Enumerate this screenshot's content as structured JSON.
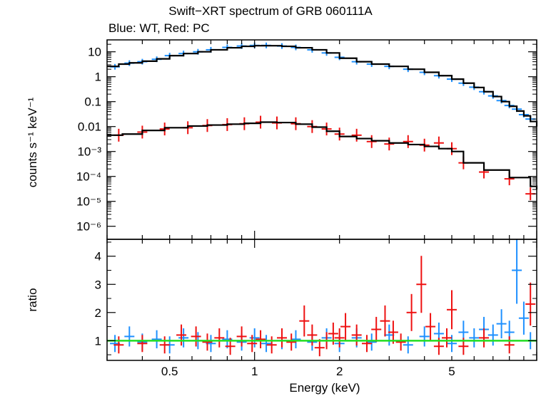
{
  "title": "Swift−XRT spectrum of GRB 060111A",
  "subtitle": "Blue: WT, Red: PC",
  "chart_data": [
    {
      "type": "scatter",
      "panel": "spectrum",
      "xlabel": "Energy (keV)",
      "ylabel": "counts s⁻¹ keV⁻¹",
      "xscale": "log",
      "yscale": "log",
      "xlim": [
        0.3,
        10
      ],
      "ylim": [
        3e-07,
        30
      ],
      "x_ticks": [],
      "y_ticks": [
        "10",
        "1",
        "0.1",
        "0.01",
        "10⁻³",
        "10⁻⁴",
        "10⁻⁵",
        "10⁻⁶"
      ],
      "series": [
        {
          "color": "#1e90ff",
          "x": [
            0.32,
            0.36,
            0.4,
            0.45,
            0.5,
            0.56,
            0.63,
            0.7,
            0.8,
            0.9,
            1.0,
            1.1,
            1.25,
            1.4,
            1.6,
            1.8,
            2.0,
            2.3,
            2.6,
            3.0,
            3.5,
            4.0,
            4.5,
            5.0,
            5.5,
            6.0,
            6.5,
            7.0,
            7.5,
            8.0,
            8.5,
            9.0,
            9.5
          ],
          "y": [
            2.5,
            3.5,
            4.0,
            5.0,
            7.0,
            8.5,
            10.0,
            12.0,
            15.0,
            17.0,
            18.0,
            18.0,
            17.0,
            15.0,
            12.0,
            9.0,
            6.0,
            4.0,
            3.2,
            2.6,
            2.0,
            1.5,
            1.1,
            0.8,
            0.55,
            0.38,
            0.25,
            0.17,
            0.11,
            0.07,
            0.05,
            0.03,
            0.02
          ]
        },
        {
          "color": "#ee1111",
          "x": [
            0.33,
            0.4,
            0.48,
            0.58,
            0.68,
            0.8,
            0.92,
            1.05,
            1.2,
            1.4,
            1.6,
            1.8,
            2.0,
            2.3,
            2.6,
            3.0,
            3.5,
            4.0,
            4.5,
            5.0,
            5.5,
            6.5,
            8.0,
            9.5
          ],
          "y": [
            0.0045,
            0.006,
            0.008,
            0.009,
            0.011,
            0.012,
            0.013,
            0.015,
            0.014,
            0.013,
            0.01,
            0.008,
            0.005,
            0.0045,
            0.0025,
            0.002,
            0.0025,
            0.0018,
            0.0022,
            0.0013,
            0.00035,
            0.00015,
            8e-05,
            2e-05
          ]
        }
      ],
      "model": [
        {
          "x": [
            0.3,
            0.33,
            0.36,
            0.4,
            0.45,
            0.5,
            0.56,
            0.63,
            0.7,
            0.8,
            0.9,
            1.0,
            1.1,
            1.25,
            1.4,
            1.6,
            1.8,
            2.0,
            2.3,
            2.6,
            3.0,
            3.5,
            4.0,
            4.5,
            5.0,
            5.5,
            6.0,
            6.5,
            7.0,
            7.5,
            8.0,
            8.5,
            9.0,
            9.5,
            10.0
          ],
          "y": [
            2.6,
            3.2,
            3.6,
            4.2,
            5.2,
            7.0,
            8.5,
            10.0,
            12.0,
            14.5,
            16.5,
            17.5,
            17.5,
            16.5,
            14.5,
            12.0,
            9.0,
            5.5,
            4.0,
            3.2,
            2.6,
            2.0,
            1.5,
            1.1,
            0.8,
            0.55,
            0.37,
            0.25,
            0.16,
            0.1,
            0.065,
            0.042,
            0.027,
            0.016,
            0.01
          ]
        },
        {
          "x": [
            0.3,
            0.34,
            0.4,
            0.48,
            0.58,
            0.68,
            0.8,
            0.92,
            1.05,
            1.2,
            1.4,
            1.6,
            1.8,
            2.0,
            2.3,
            2.6,
            3.0,
            3.5,
            4.0,
            4.5,
            5.0,
            5.5,
            6.5,
            8.0,
            9.5,
            10.0
          ],
          "y": [
            0.0045,
            0.005,
            0.007,
            0.009,
            0.0105,
            0.0115,
            0.0125,
            0.0135,
            0.015,
            0.0145,
            0.0125,
            0.0095,
            0.0065,
            0.004,
            0.0033,
            0.0027,
            0.0022,
            0.0019,
            0.0016,
            0.0013,
            0.001,
            0.00035,
            0.00018,
            9e-05,
            4e-05,
            3e-05
          ]
        }
      ]
    },
    {
      "type": "scatter",
      "panel": "ratio",
      "xlabel": "Energy (keV)",
      "ylabel": "ratio",
      "xscale": "log",
      "xlim": [
        0.3,
        10
      ],
      "ylim": [
        0.3,
        4.6
      ],
      "x_ticks": [
        "0.5",
        "1",
        "2",
        "5"
      ],
      "y_ticks": [
        "1",
        "2",
        "3",
        "4"
      ],
      "reference_line": {
        "y": 1,
        "color": "#22dd22"
      },
      "series": [
        {
          "color": "#1e90ff",
          "x": [
            0.32,
            0.36,
            0.4,
            0.45,
            0.5,
            0.56,
            0.63,
            0.7,
            0.8,
            0.9,
            1.0,
            1.1,
            1.25,
            1.4,
            1.6,
            1.8,
            2.0,
            2.3,
            2.6,
            3.0,
            3.5,
            4.0,
            4.5,
            5.0,
            5.5,
            6.0,
            6.5,
            7.0,
            7.5,
            8.0,
            8.5,
            9.0,
            9.5
          ],
          "y": [
            0.9,
            1.15,
            0.95,
            1.05,
            0.85,
            1.1,
            1.0,
            0.9,
            1.05,
            0.95,
            1.1,
            0.9,
            1.0,
            1.05,
            0.95,
            1.1,
            0.9,
            1.1,
            0.95,
            1.2,
            0.85,
            1.15,
            1.25,
            0.9,
            1.3,
            1.1,
            1.4,
            1.2,
            1.6,
            1.3,
            3.5,
            1.8,
            1.0
          ]
        },
        {
          "color": "#ee1111",
          "x": [
            0.33,
            0.4,
            0.48,
            0.55,
            0.62,
            0.68,
            0.75,
            0.82,
            0.9,
            0.98,
            1.05,
            1.15,
            1.25,
            1.35,
            1.5,
            1.6,
            1.7,
            1.8,
            1.9,
            2.0,
            2.1,
            2.3,
            2.5,
            2.7,
            2.9,
            3.1,
            3.3,
            3.6,
            3.9,
            4.2,
            4.5,
            4.8,
            5.0,
            5.5,
            6.5,
            8.0,
            9.5
          ],
          "y": [
            0.85,
            0.9,
            0.85,
            1.2,
            1.15,
            0.95,
            1.1,
            0.8,
            1.15,
            0.9,
            1.05,
            0.85,
            1.1,
            0.95,
            1.7,
            1.2,
            0.75,
            1.0,
            1.25,
            1.1,
            1.5,
            1.2,
            0.9,
            1.4,
            1.7,
            1.3,
            0.95,
            2.0,
            3.0,
            1.5,
            0.8,
            1.1,
            2.1,
            0.8,
            1.1,
            0.85,
            2.3
          ]
        }
      ]
    }
  ]
}
